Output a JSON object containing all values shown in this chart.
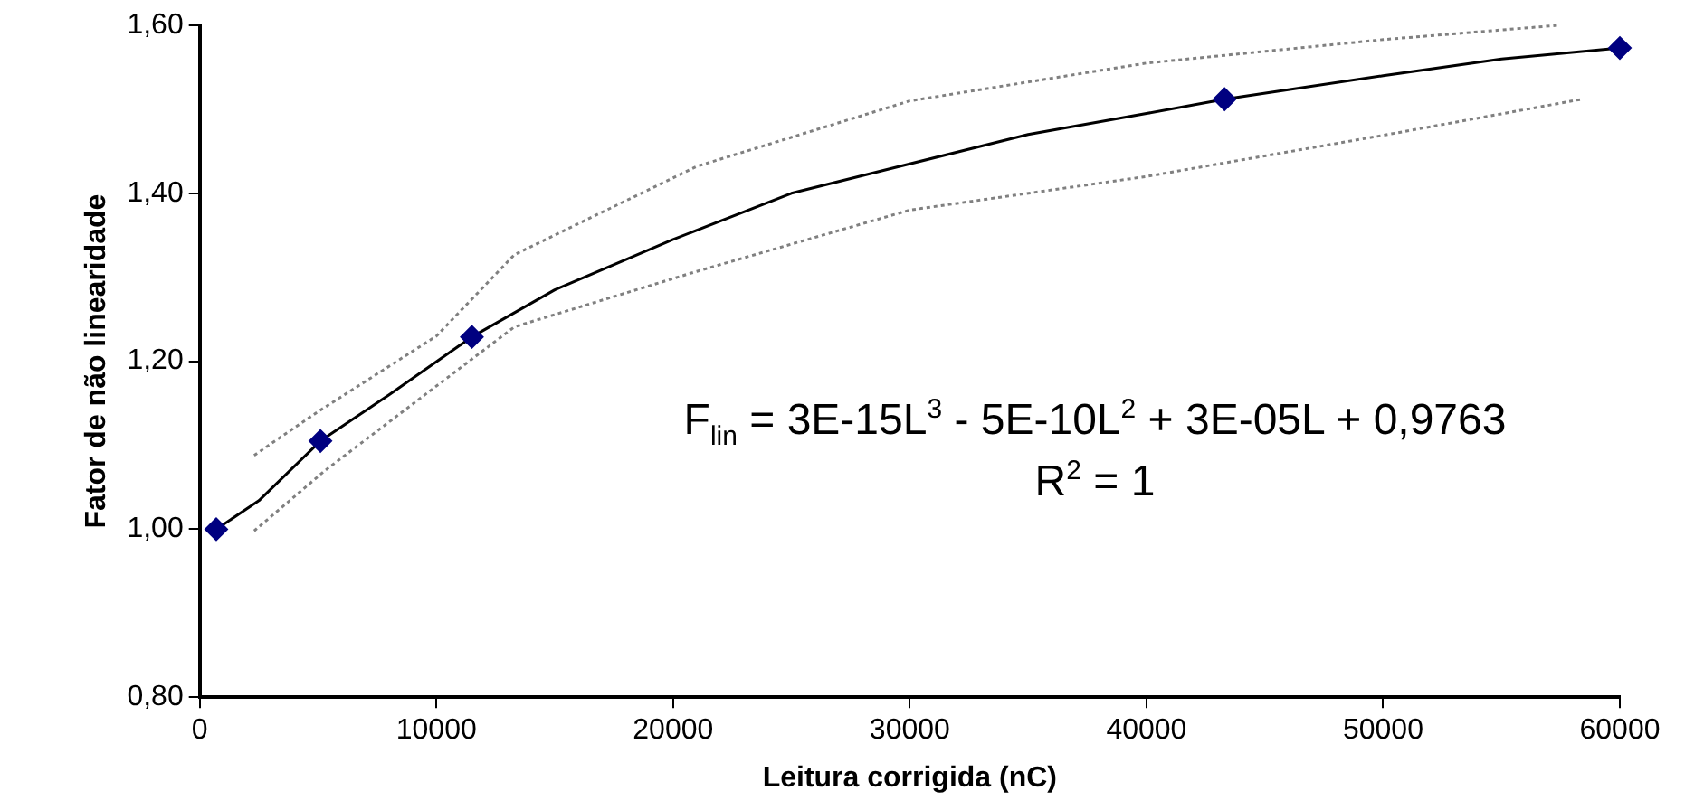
{
  "chart_data": {
    "type": "scatter",
    "xlabel": "Leitura corrigida (nC)",
    "ylabel": "Fator de não linearidade",
    "xlim": [
      0,
      60000
    ],
    "xticks": [
      0,
      10000,
      20000,
      30000,
      40000,
      50000,
      60000
    ],
    "ylim": [
      0.8,
      1.6
    ],
    "yticks": [
      {
        "value": 0.8,
        "label": "0,80"
      },
      {
        "value": 1.0,
        "label": "1,00"
      },
      {
        "value": 1.2,
        "label": "1,20"
      },
      {
        "value": 1.4,
        "label": "1,40"
      },
      {
        "value": 1.6,
        "label": "1,60"
      }
    ],
    "legend": false,
    "series": [
      {
        "type": "line",
        "color": "#808080",
        "line_style": "dotted",
        "marker": "none",
        "x": [
          2300,
          5000,
          10000,
          13300,
          21000,
          30000,
          40000,
          50000,
          57400
        ],
        "values": [
          1.088,
          1.14,
          1.23,
          1.327,
          1.432,
          1.51,
          1.555,
          1.583,
          1.6
        ]
      },
      {
        "type": "line",
        "color": "#808080",
        "line_style": "dotted",
        "marker": "none",
        "x": [
          2300,
          5300,
          13300,
          21000,
          30000,
          40000,
          50000,
          58400
        ],
        "values": [
          0.998,
          1.07,
          1.241,
          1.307,
          1.38,
          1.42,
          1.469,
          1.512
        ]
      },
      {
        "type": "line",
        "color": "#000000",
        "line_style": "solid",
        "marker": "none",
        "x": [
          700,
          2500,
          5100,
          8000,
          11500,
          15000,
          20000,
          25000,
          30000,
          35000,
          40000,
          43300,
          50000,
          55000,
          60000
        ],
        "values": [
          1.0,
          1.034,
          1.105,
          1.16,
          1.229,
          1.285,
          1.345,
          1.4,
          1.435,
          1.47,
          1.495,
          1.512,
          1.54,
          1.56,
          1.573
        ]
      },
      {
        "color": "#000080",
        "marker": "diamond",
        "x": [
          700,
          5100,
          11500,
          43300,
          60000
        ],
        "values": [
          1.0,
          1.105,
          1.229,
          1.512,
          1.573
        ]
      }
    ],
    "annotations": [
      "F$_{lin}$ = 3E-15L$^{3}$ - 5E-10L$^{2}$ + 3E-05L + 0,9763",
      "R$^{2}$ = 1"
    ]
  }
}
